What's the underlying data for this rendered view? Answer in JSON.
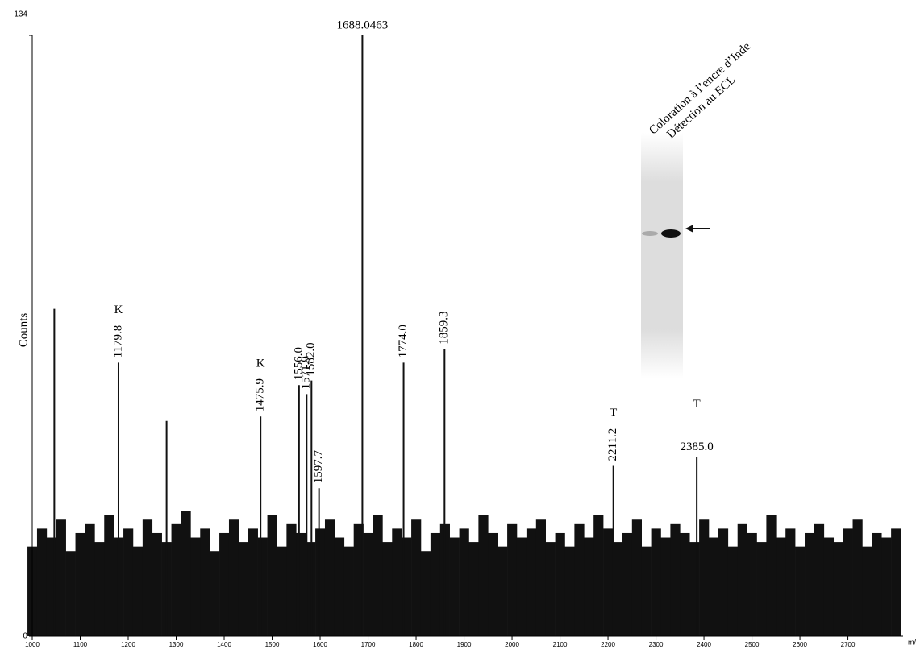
{
  "chart_data": {
    "type": "spectrum",
    "ylabel": "Counts",
    "xlabel": "m/",
    "xlim": [
      1000,
      2815
    ],
    "ylim": [
      0,
      134
    ],
    "xticks": [
      1000,
      1100,
      1200,
      1300,
      1400,
      1500,
      1600,
      1700,
      1800,
      1900,
      2000,
      2100,
      2200,
      2300,
      2400,
      2500,
      2600,
      2700
    ],
    "yticks": [
      0,
      134
    ],
    "color": "#111111",
    "peaks": [
      {
        "x": 1046,
        "value": 73,
        "label": null,
        "tag": null
      },
      {
        "x": 1179.8,
        "value": 61,
        "label": "1179.8",
        "tag": "K"
      },
      {
        "x": 1280,
        "value": 48,
        "label": null,
        "tag": null
      },
      {
        "x": 1475.9,
        "value": 49,
        "label": "1475.9",
        "tag": "K"
      },
      {
        "x": 1556.0,
        "value": 56,
        "label": "1556.0",
        "tag": null
      },
      {
        "x": 1571.9,
        "value": 54,
        "label": "1571.9",
        "tag": null
      },
      {
        "x": 1582.0,
        "value": 57,
        "label": "1582.0",
        "tag": null
      },
      {
        "x": 1597.7,
        "value": 33,
        "label": "1597.7",
        "tag": null
      },
      {
        "x": 1688.0463,
        "value": 134,
        "label": "1688.0463",
        "tag": null
      },
      {
        "x": 1774.0,
        "value": 61,
        "label": "1774.0",
        "tag": null
      },
      {
        "x": 1859.3,
        "value": 64,
        "label": "1859.3",
        "tag": null
      },
      {
        "x": 2211.2,
        "value": 38,
        "label": "2211.2",
        "tag": "T"
      },
      {
        "x": 2385.0,
        "value": 40,
        "label": "2385.0",
        "tag": "T"
      }
    ],
    "baseline": {
      "x_start": 1000,
      "x_step": 20,
      "values": [
        20,
        24,
        22,
        26,
        19,
        23,
        25,
        21,
        27,
        22,
        24,
        20,
        26,
        23,
        21,
        25,
        28,
        22,
        24,
        19,
        23,
        26,
        21,
        24,
        22,
        27,
        20,
        25,
        23,
        21,
        24,
        26,
        22,
        20,
        25,
        23,
        27,
        21,
        24,
        22,
        26,
        19,
        23,
        25,
        22,
        24,
        21,
        27,
        23,
        20,
        25,
        22,
        24,
        26,
        21,
        23,
        20,
        25,
        22,
        27,
        24,
        21,
        23,
        26,
        20,
        24,
        22,
        25,
        23,
        21,
        26,
        22,
        24,
        20,
        25,
        23,
        21,
        27,
        22,
        24,
        20,
        23,
        25,
        22,
        21,
        24,
        26,
        20,
        23,
        22,
        24
      ]
    },
    "inset": {
      "labels": [
        "Coloration à l’encre d’Inde",
        "Détection au ECL"
      ]
    }
  }
}
